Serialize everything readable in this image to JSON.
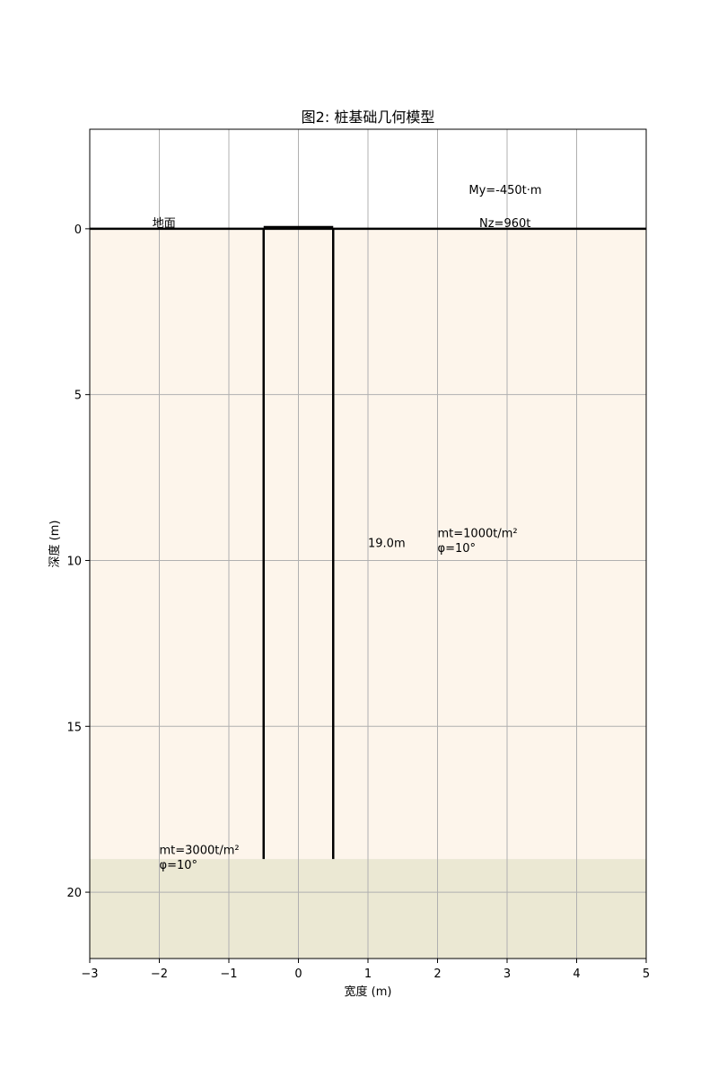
{
  "chart_data": {
    "type": "line",
    "title": "图2: 桩基础几何模型",
    "xlabel": "宽度 (m)",
    "ylabel": "深度 (m)",
    "xlim": [
      -3,
      5
    ],
    "ylim": [
      22,
      -3
    ],
    "y_inverted": true,
    "grid": true,
    "x_ticks": [
      {
        "value": -3,
        "label": "−3"
      },
      {
        "value": -2,
        "label": "−2"
      },
      {
        "value": -1,
        "label": "−1"
      },
      {
        "value": 0,
        "label": "0"
      },
      {
        "value": 1,
        "label": "1"
      },
      {
        "value": 2,
        "label": "2"
      },
      {
        "value": 3,
        "label": "3"
      },
      {
        "value": 4,
        "label": "4"
      },
      {
        "value": 5,
        "label": "5"
      }
    ],
    "y_ticks": [
      {
        "value": 0,
        "label": "0"
      },
      {
        "value": 5,
        "label": "5"
      },
      {
        "value": 10,
        "label": "10"
      },
      {
        "value": 15,
        "label": "15"
      },
      {
        "value": 20,
        "label": "20"
      }
    ],
    "soil_layers": [
      {
        "top": 0,
        "bottom": 19,
        "color": "#fdf5eb"
      },
      {
        "top": 19,
        "bottom": 22,
        "color": "#ebe8d3"
      }
    ],
    "ground_line": {
      "y": 0,
      "x": [
        -3,
        5
      ]
    },
    "pile": {
      "left": -0.5,
      "right": 0.5,
      "top": 0,
      "bottom": 19,
      "cap_top": -0.05
    },
    "annotations": [
      {
        "text": "地面",
        "x": -2.1,
        "y": -0.05
      },
      {
        "text": "My=-450t·m",
        "x": 2.45,
        "y": -1.05
      },
      {
        "text": "Nz=960t",
        "x": 2.6,
        "y": -0.05
      },
      {
        "text": "19.0m",
        "x": 1.0,
        "y": 9.6
      },
      {
        "text": "mt=1000t/m²",
        "x": 2.0,
        "y": 9.3
      },
      {
        "text": "φ=10°",
        "x": 2.0,
        "y": 9.75
      },
      {
        "text": "mt=3000t/m²",
        "x": -2.0,
        "y": 18.85
      },
      {
        "text": "φ=10°",
        "x": -2.0,
        "y": 19.3
      }
    ]
  }
}
